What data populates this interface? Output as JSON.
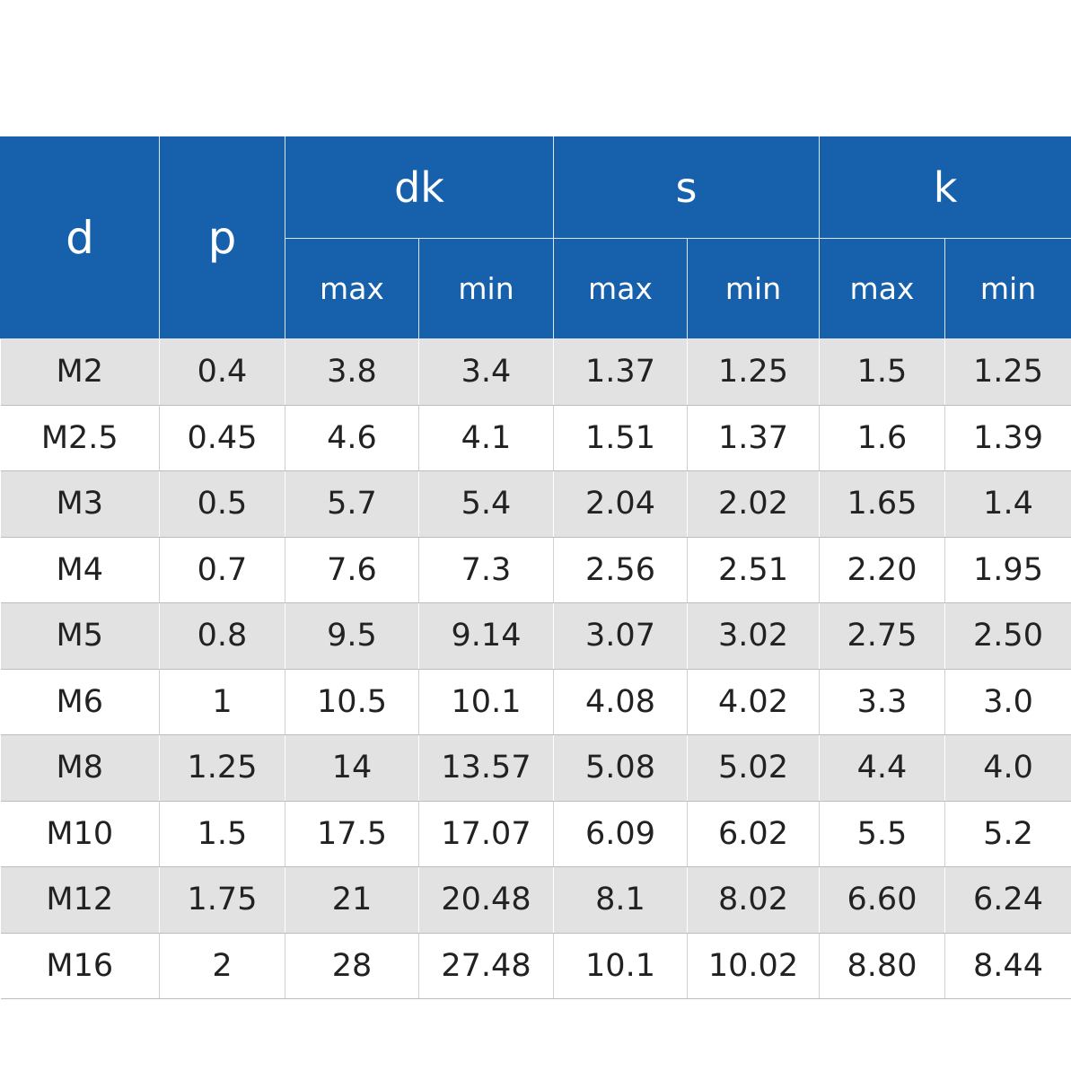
{
  "header": {
    "d": "d",
    "p": "p",
    "dk": "dk",
    "s": "s",
    "k": "k",
    "sub": [
      "max",
      "min",
      "max",
      "min",
      "max",
      "min"
    ]
  },
  "rows": [
    [
      "M2",
      "0.4",
      "3.8",
      "3.4",
      "1.37",
      "1.25",
      "1.5",
      "1.25"
    ],
    [
      "M2.5",
      "0.45",
      "4.6",
      "4.1",
      "1.51",
      "1.37",
      "1.6",
      "1.39"
    ],
    [
      "M3",
      "0.5",
      "5.7",
      "5.4",
      "2.04",
      "2.02",
      "1.65",
      "1.4"
    ],
    [
      "M4",
      "0.7",
      "7.6",
      "7.3",
      "2.56",
      "2.51",
      "2.20",
      "1.95"
    ],
    [
      "M5",
      "0.8",
      "9.5",
      "9.14",
      "3.07",
      "3.02",
      "2.75",
      "2.50"
    ],
    [
      "M6",
      "1",
      "10.5",
      "10.1",
      "4.08",
      "4.02",
      "3.3",
      "3.0"
    ],
    [
      "M8",
      "1.25",
      "14",
      "13.57",
      "5.08",
      "5.02",
      "4.4",
      "4.0"
    ],
    [
      "M10",
      "1.5",
      "17.5",
      "17.07",
      "6.09",
      "6.02",
      "5.5",
      "5.2"
    ],
    [
      "M12",
      "1.75",
      "21",
      "20.48",
      "8.1",
      "8.02",
      "6.60",
      "6.24"
    ],
    [
      "M16",
      "2",
      "28",
      "27.48",
      "10.1",
      "10.02",
      "8.80",
      "8.44"
    ]
  ],
  "colors": {
    "header_bg": "#1761ac",
    "header_text": "#ffffff",
    "stripe": "#e2e2e2",
    "body_text": "#222222"
  }
}
